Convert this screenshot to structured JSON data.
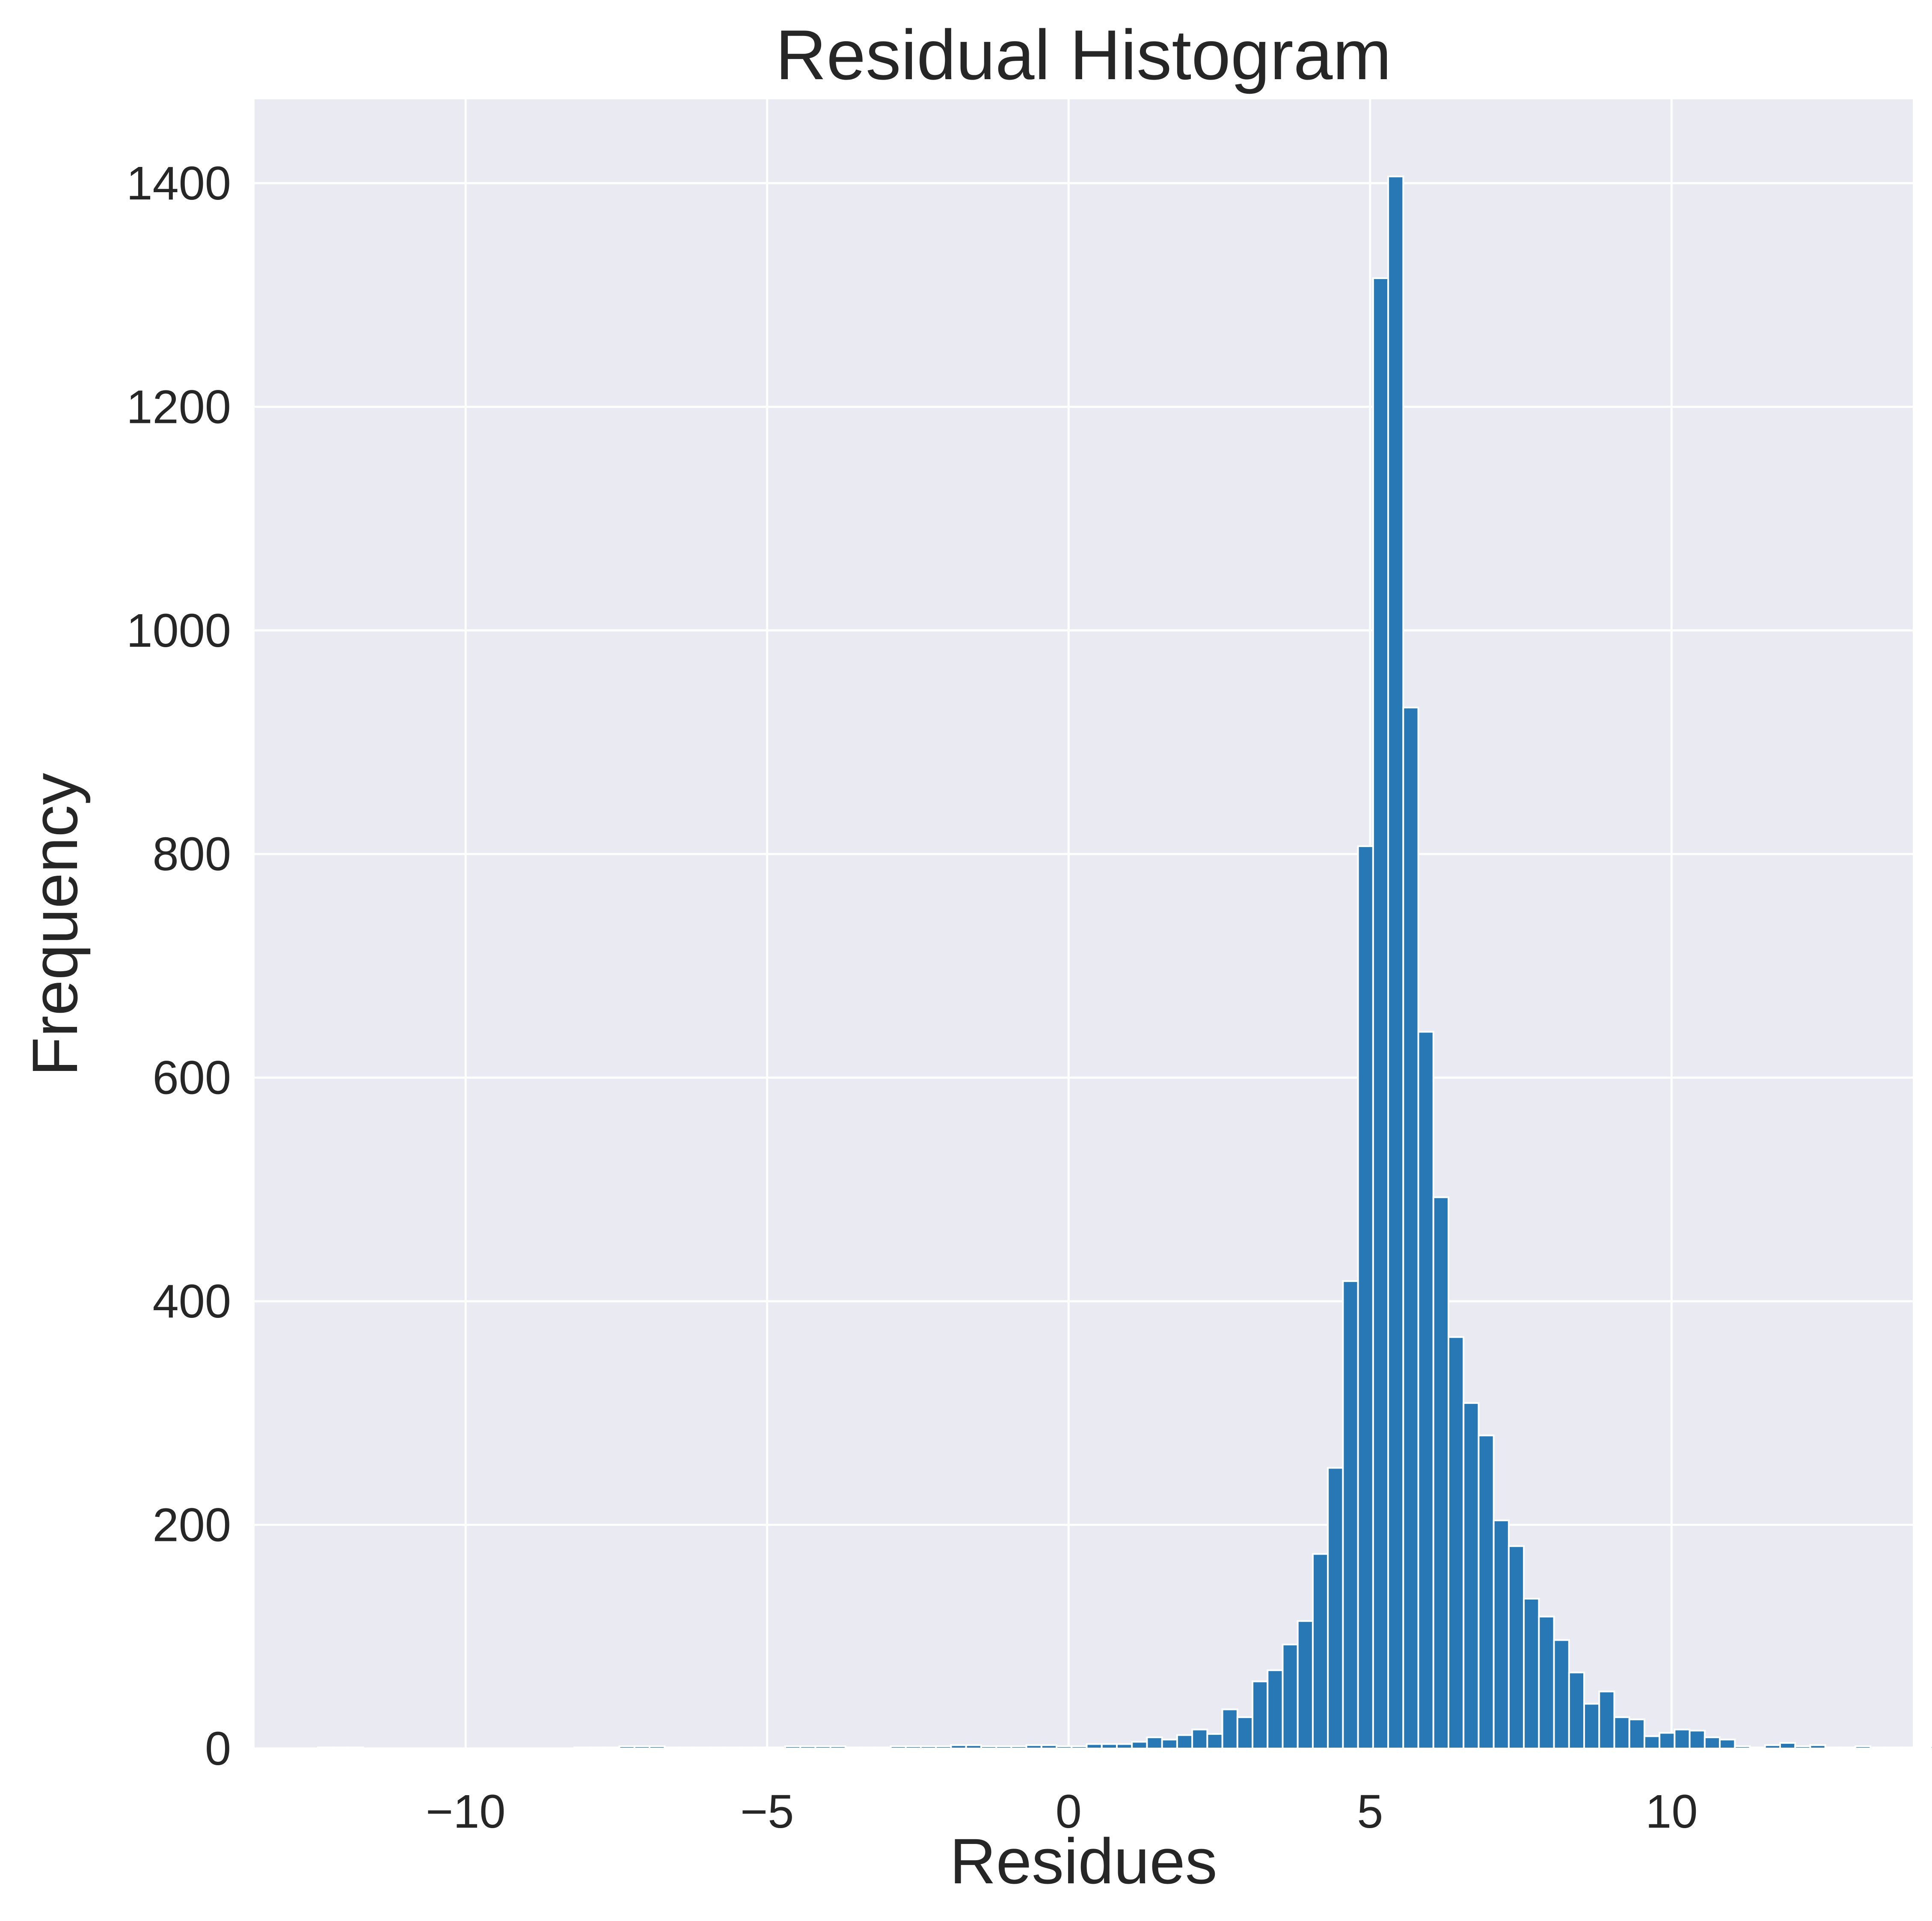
{
  "chart_data": {
    "type": "bar",
    "title": "Residual Histogram",
    "xlabel": "Residues",
    "ylabel": "Frequency",
    "xlim": [
      -13.5,
      14.0
    ],
    "ylim": [
      0,
      1475
    ],
    "x_ticks": [
      -10,
      -5,
      0,
      5,
      10
    ],
    "x_tick_labels": [
      "−10",
      "−5",
      "0",
      "5",
      "10"
    ],
    "y_ticks": [
      0,
      200,
      400,
      600,
      800,
      1000,
      1200,
      1400
    ],
    "y_tick_labels": [
      "0",
      "200",
      "400",
      "600",
      "800",
      "1000",
      "1200",
      "1400"
    ],
    "grid": true,
    "legend": "none",
    "bin_start": -12.45,
    "bin_width": 0.25,
    "values": [
      1,
      1,
      1,
      0,
      0,
      0,
      0,
      0,
      0,
      0,
      0,
      0,
      0,
      0,
      0,
      0,
      0,
      1,
      1,
      1,
      2,
      2,
      2,
      1,
      1,
      1,
      1,
      1,
      1,
      1,
      1,
      2,
      2,
      2,
      2,
      1,
      1,
      1,
      2,
      2,
      2,
      2,
      3,
      3,
      2,
      2,
      2,
      3,
      3,
      2,
      2,
      4,
      4,
      4,
      6,
      10,
      8,
      12,
      17,
      13,
      35,
      28,
      60,
      70,
      93,
      114,
      174,
      251,
      418,
      807,
      1315,
      1406,
      931,
      641,
      493,
      368,
      309,
      280,
      204,
      181,
      134,
      118,
      97,
      68,
      40,
      51,
      28,
      26,
      11,
      14,
      17,
      16,
      10,
      8,
      2,
      1,
      3,
      5,
      2,
      3,
      1,
      1,
      2,
      1,
      1,
      1,
      1,
      2,
      1,
      1,
      1,
      2,
      2,
      2,
      1,
      1,
      3,
      1,
      1,
      1
    ]
  },
  "colors": {
    "bar": "#2878b5",
    "plot_background": "#eaeaf2",
    "grid": "#ffffff",
    "text": "#262626"
  }
}
